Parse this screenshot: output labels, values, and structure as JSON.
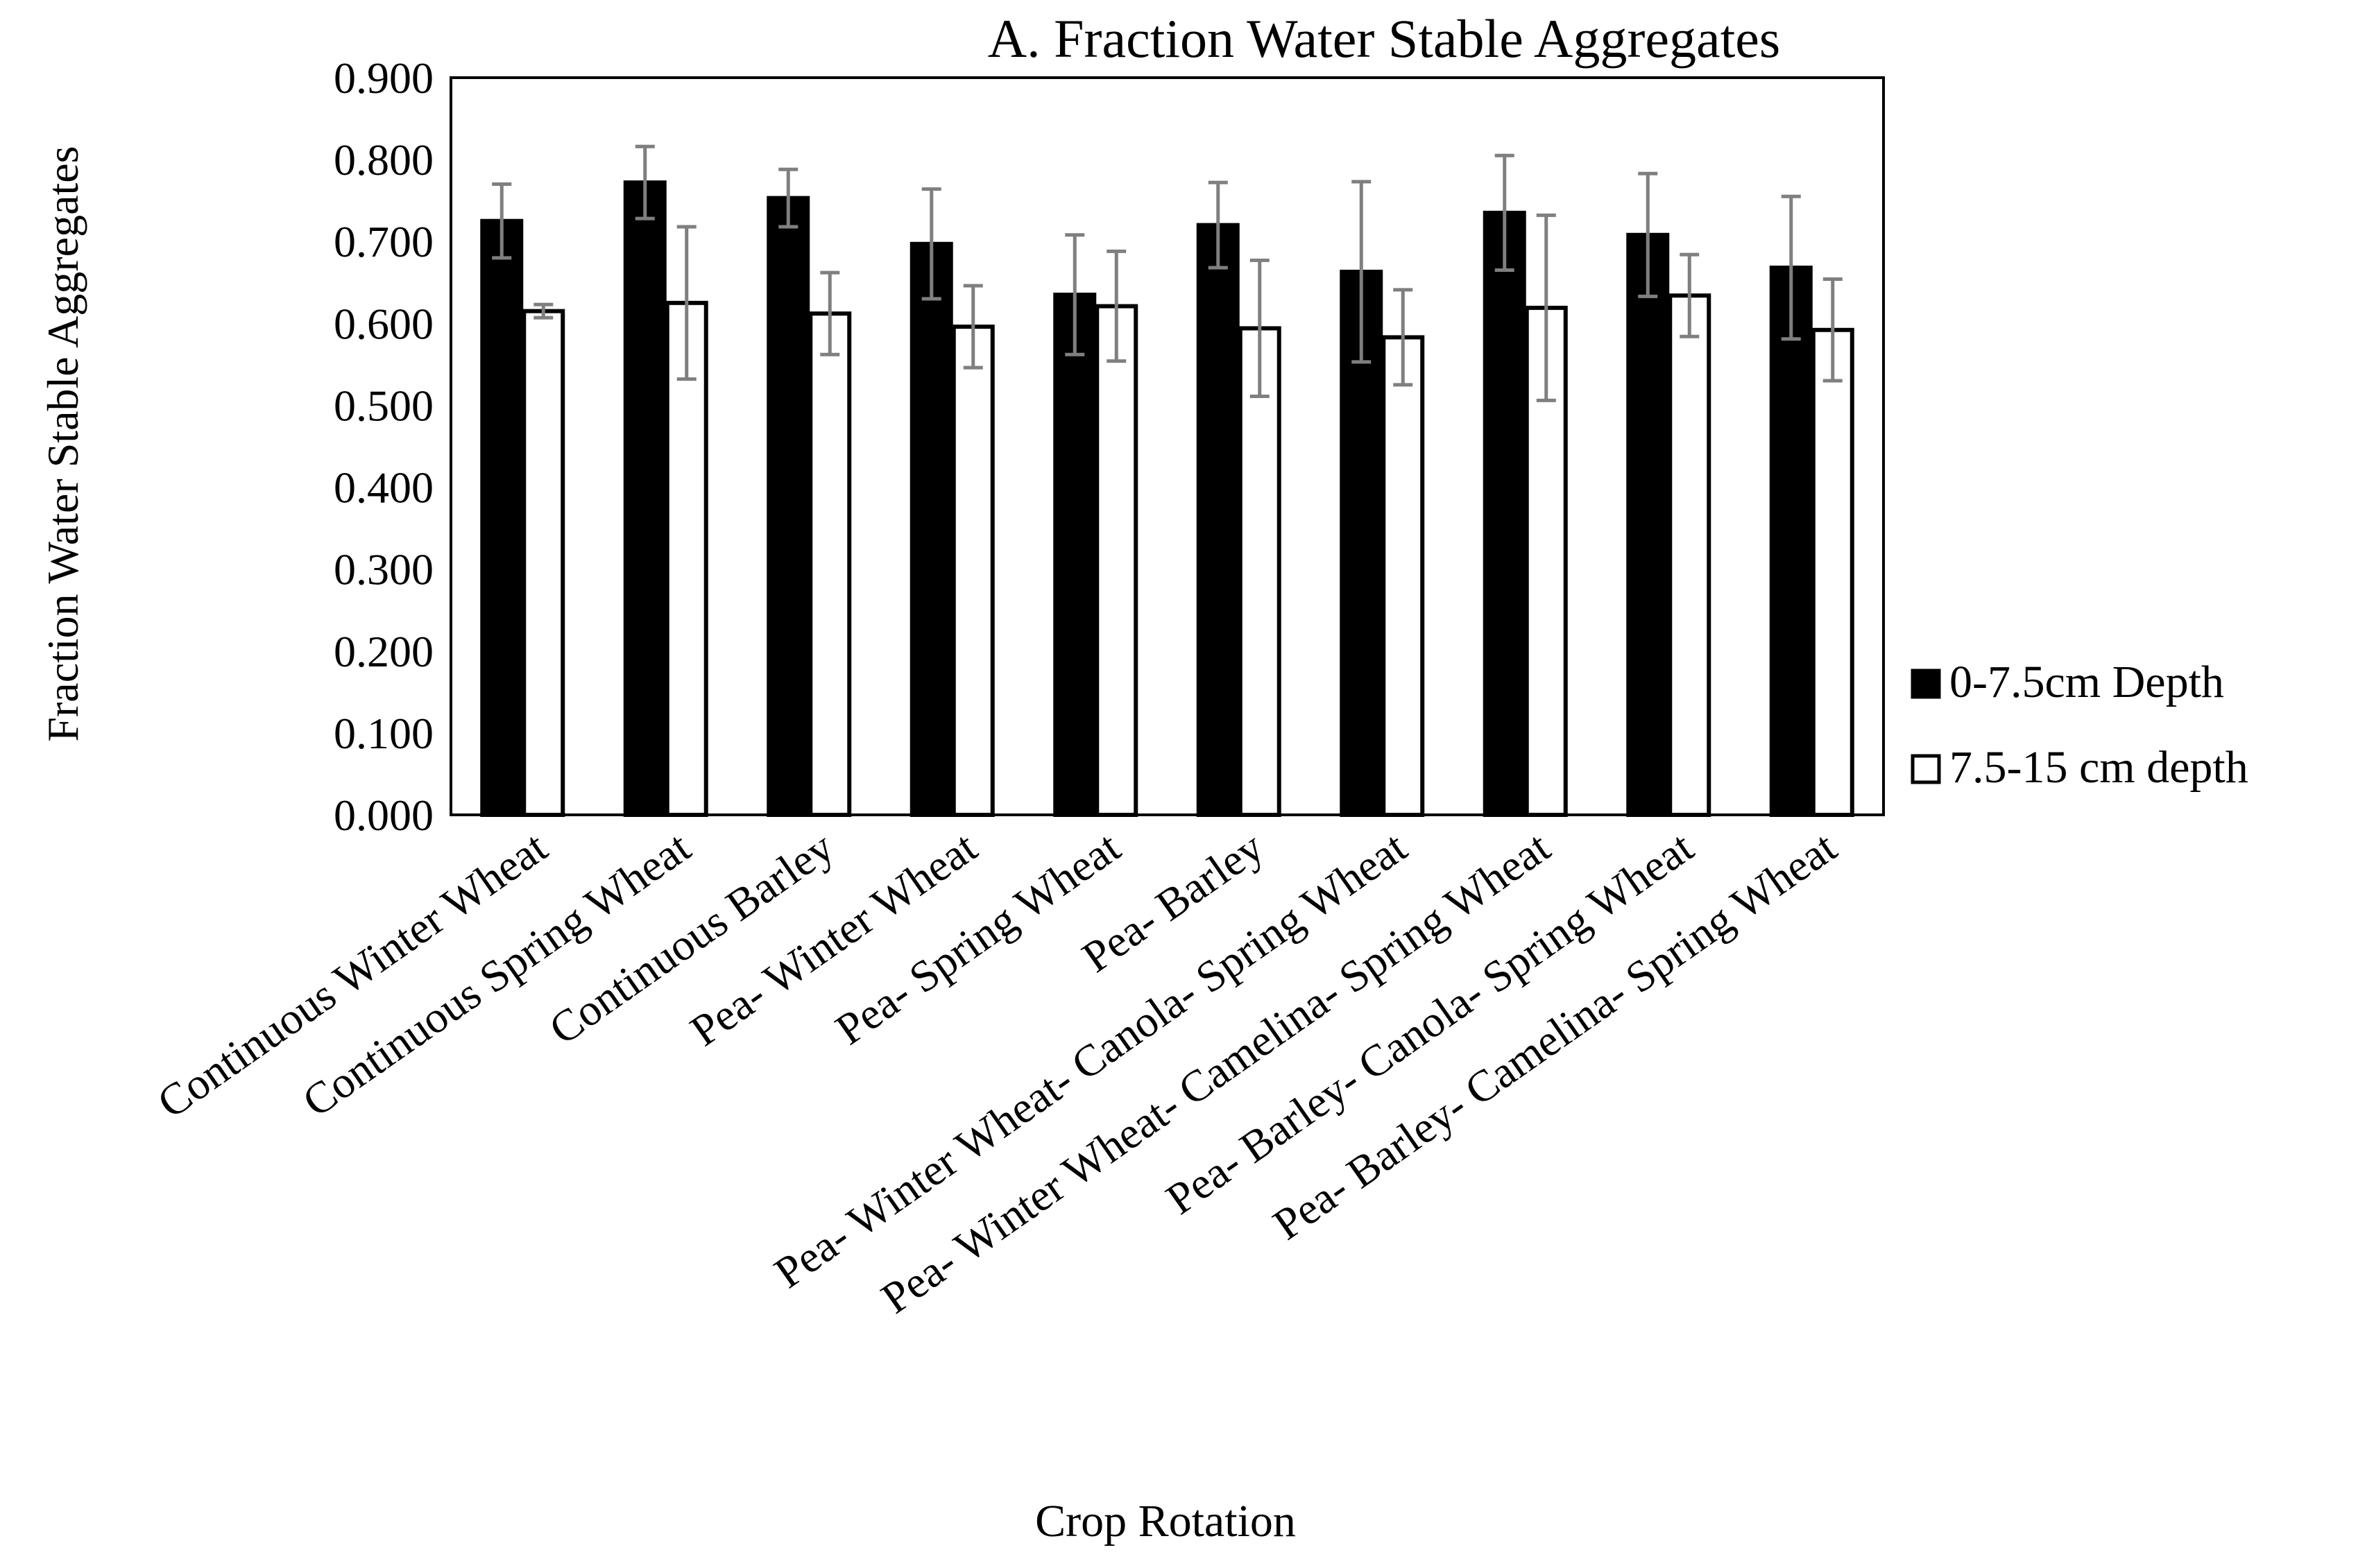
{
  "chart_data": {
    "type": "bar",
    "title": "A. Fraction Water Stable Aggregates",
    "xlabel": "Crop Rotation",
    "ylabel": "Fraction Water Stable Aggregates",
    "ylim": [
      0,
      0.9
    ],
    "yticks": [
      "0.000",
      "0.100",
      "0.200",
      "0.300",
      "0.400",
      "0.500",
      "0.600",
      "0.700",
      "0.800",
      "0.900"
    ],
    "grid": false,
    "legend_position": "right",
    "categories": [
      "Continuous Winter Wheat",
      "Continuous Spring Wheat",
      "Continuous Barley",
      "Pea- Winter Wheat",
      "Pea- Spring Wheat",
      "Pea- Barley",
      "Pea- Winter Wheat- Canola- Spring Wheat",
      "Pea- Winter Wheat- Camelina- Spring Wheat",
      "Pea- Barley- Canola- Spring Wheat",
      "Pea- Barley- Camelina- Spring Wheat"
    ],
    "series": [
      {
        "name": "0-7.5cm Depth",
        "color": "#000000",
        "values": [
          0.725,
          0.772,
          0.753,
          0.697,
          0.635,
          0.72,
          0.663,
          0.735,
          0.708,
          0.668
        ],
        "errors": [
          0.045,
          0.044,
          0.035,
          0.067,
          0.073,
          0.052,
          0.11,
          0.07,
          0.075,
          0.087
        ]
      },
      {
        "name": "7.5-15 cm depth",
        "color": "#ffffff",
        "values": [
          0.615,
          0.625,
          0.612,
          0.596,
          0.621,
          0.594,
          0.583,
          0.619,
          0.634,
          0.592
        ],
        "errors": [
          0.008,
          0.093,
          0.05,
          0.05,
          0.067,
          0.083,
          0.058,
          0.113,
          0.05,
          0.062
        ]
      }
    ]
  }
}
